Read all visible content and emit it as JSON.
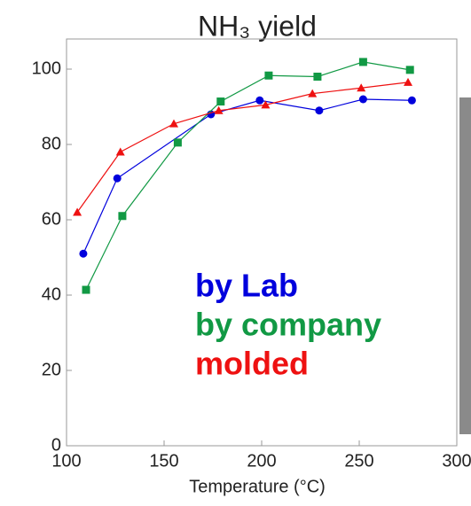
{
  "chart_data": {
    "type": "line",
    "title": "NH₃ yield",
    "x_label": "Temperature (°C)",
    "xlim": [
      100,
      300
    ],
    "xticks": [
      100,
      150,
      200,
      250,
      300
    ],
    "ylim": [
      0,
      108
    ],
    "yticks": [
      0,
      20,
      40,
      60,
      80,
      100
    ],
    "series": [
      {
        "name": "by Lab",
        "color": "#0000dd",
        "marker": "circle",
        "x": [
          108.6,
          126,
          174,
          199,
          229.5,
          252,
          277
        ],
        "values": [
          51,
          71,
          88,
          91.7,
          89,
          92,
          91.7
        ]
      },
      {
        "name": "by company",
        "color": "#119944",
        "marker": "square",
        "x": [
          110,
          128.6,
          157,
          179,
          203.6,
          228.6,
          252,
          276
        ],
        "values": [
          41.4,
          61,
          80.5,
          91.4,
          98.3,
          98,
          101.9,
          99.8
        ]
      },
      {
        "name": "molded",
        "color": "#ee1111",
        "marker": "triangle",
        "x": [
          105.5,
          127.6,
          155,
          178,
          202,
          226,
          251,
          275
        ],
        "values": [
          62,
          78,
          85.5,
          89,
          90.5,
          93.5,
          95,
          96.5
        ]
      }
    ]
  }
}
